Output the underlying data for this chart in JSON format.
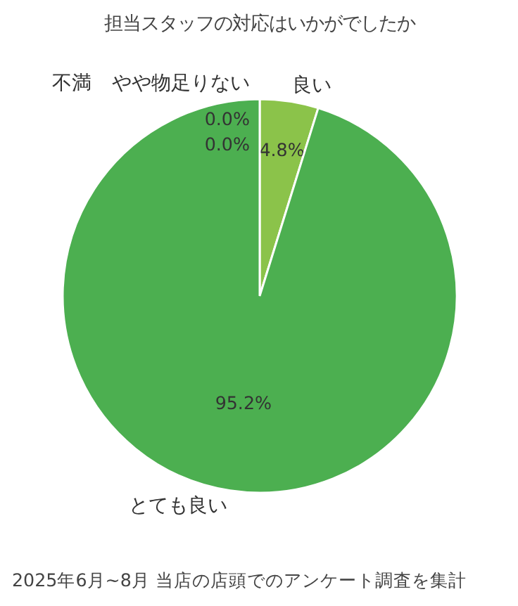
{
  "chart_data": {
    "type": "pie",
    "title": "担当スタッフの対応はいかがでしたか",
    "categories": [
      "良い",
      "とても良い",
      "やや物足りない",
      "不満"
    ],
    "values": [
      4.8,
      95.2,
      0.0,
      0.0
    ],
    "colors": [
      "#8bc34a",
      "#4caf50",
      "#ffc107",
      "#f44336"
    ],
    "value_labels": [
      "4.8%",
      "95.2%",
      "0.0%",
      "0.0%"
    ],
    "annotations": [
      "2025年6月~8月 当店の店頭でのアンケート調査を集計"
    ]
  }
}
